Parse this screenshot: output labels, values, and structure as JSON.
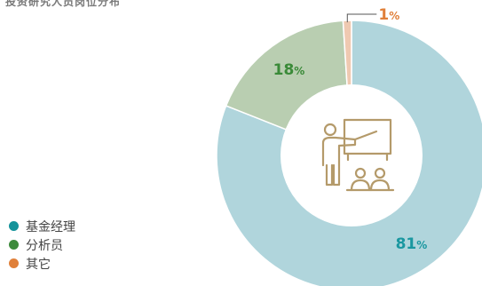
{
  "clipped_heading": "投资研究人员岗位分布",
  "colors": {
    "manager_slice": "#b0d5dc",
    "analyst_slice": "#b9ceb1",
    "other_slice": "#efc9b1",
    "manager_dot": "#14939a",
    "analyst_dot": "#3d8a3c",
    "other_dot": "#e0803a",
    "manager_label": "#1a97a0",
    "analyst_label": "#3a8a38",
    "other_label": "#e0803a",
    "icon": "#b49a6a"
  },
  "center_icon": "teacher-presenting-icon",
  "chart_data": {
    "type": "pie",
    "donut": true,
    "series": [
      {
        "name": "基金经理",
        "value": 81,
        "unit": "%"
      },
      {
        "name": "分析员",
        "value": 18,
        "unit": "%"
      },
      {
        "name": "其它",
        "value": 1,
        "unit": "%"
      }
    ],
    "legend_position": "bottom-left",
    "start_angle_deg": 0,
    "direction": "clockwise"
  }
}
